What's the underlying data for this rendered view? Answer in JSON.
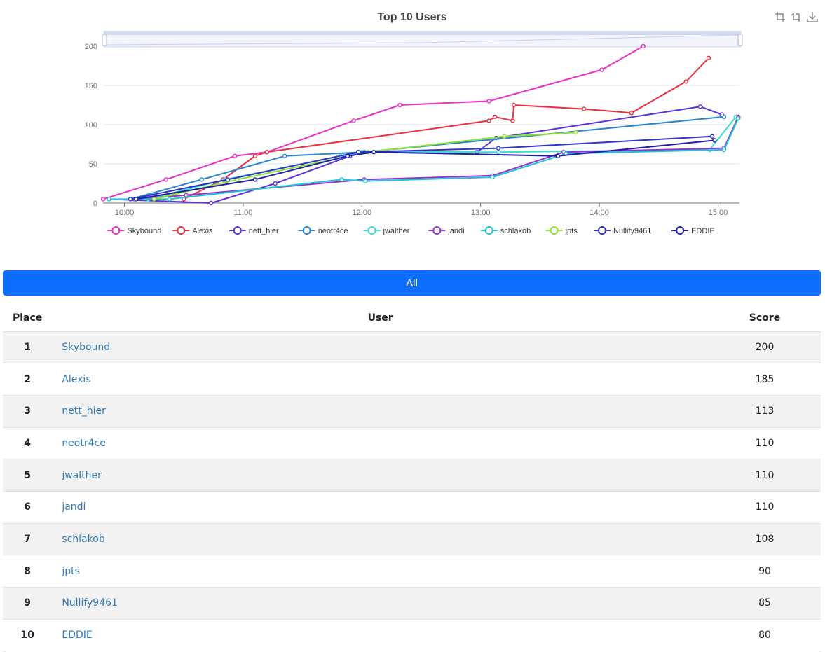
{
  "chart_data": {
    "type": "line",
    "title": "Top 10 Users",
    "xlabel": "",
    "ylabel": "",
    "x_unit": "time of day (hours)",
    "xlim": [
      9.82,
      15.18
    ],
    "ylim": [
      0,
      200
    ],
    "x_ticks": [
      {
        "v": 10,
        "label": "10:00"
      },
      {
        "v": 11,
        "label": "11:00"
      },
      {
        "v": 12,
        "label": "12:00"
      },
      {
        "v": 13,
        "label": "13:00"
      },
      {
        "v": 14,
        "label": "14:00"
      },
      {
        "v": 15,
        "label": "15:00"
      }
    ],
    "y_ticks": [
      0,
      50,
      100,
      150,
      200
    ],
    "grid": true,
    "legend": "bottom",
    "data_zoom": "top slider",
    "series": [
      {
        "name": "Skybound",
        "color": "#ed2fc4",
        "points": [
          [
            9.82,
            5
          ],
          [
            10.35,
            30
          ],
          [
            10.93,
            60
          ],
          [
            11.2,
            65
          ],
          [
            11.93,
            105
          ],
          [
            12.32,
            125
          ],
          [
            13.07,
            130
          ],
          [
            14.02,
            170
          ],
          [
            14.37,
            200
          ]
        ]
      },
      {
        "name": "Alexis",
        "color": "#ed2e3f",
        "points": [
          [
            10.5,
            5
          ],
          [
            10.83,
            30
          ],
          [
            11.1,
            60
          ],
          [
            11.2,
            65
          ],
          [
            13.07,
            105
          ],
          [
            13.12,
            110
          ],
          [
            13.27,
            105
          ],
          [
            13.28,
            125
          ],
          [
            13.87,
            120
          ],
          [
            14.27,
            115
          ],
          [
            14.73,
            155
          ],
          [
            14.92,
            185
          ]
        ]
      },
      {
        "name": "nett_hier",
        "color": "#5c32de",
        "points": [
          [
            9.87,
            5
          ],
          [
            10.73,
            0
          ],
          [
            11.27,
            25
          ],
          [
            11.9,
            60
          ],
          [
            11.97,
            65
          ],
          [
            12.97,
            65
          ],
          [
            13.13,
            83
          ],
          [
            14.85,
            123
          ],
          [
            15.03,
            113
          ]
        ]
      },
      {
        "name": "neotr4ce",
        "color": "#2a85d0",
        "points": [
          [
            10.05,
            5
          ],
          [
            10.65,
            30
          ],
          [
            11.35,
            60
          ],
          [
            12.02,
            65
          ],
          [
            15.05,
            110
          ]
        ]
      },
      {
        "name": "jwalther",
        "color": "#35e0cc",
        "points": [
          [
            10.2,
            5
          ],
          [
            10.85,
            30
          ],
          [
            11.82,
            60
          ],
          [
            12.0,
            65
          ],
          [
            13.15,
            65
          ],
          [
            14.93,
            68
          ],
          [
            15.15,
            110
          ]
        ]
      },
      {
        "name": "jandi",
        "color": "#9630d4",
        "points": [
          [
            10.08,
            5
          ],
          [
            10.52,
            10
          ],
          [
            12.02,
            30
          ],
          [
            13.1,
            35
          ],
          [
            13.7,
            65
          ],
          [
            15.05,
            70
          ],
          [
            15.17,
            110
          ]
        ]
      },
      {
        "name": "schlakob",
        "color": "#1ec4cf",
        "points": [
          [
            9.87,
            5
          ],
          [
            10.38,
            5
          ],
          [
            11.83,
            30
          ],
          [
            12.03,
            28
          ],
          [
            13.1,
            33
          ],
          [
            13.72,
            63
          ],
          [
            15.05,
            68
          ],
          [
            15.17,
            108
          ]
        ]
      },
      {
        "name": "jpts",
        "color": "#8be32e",
        "points": [
          [
            10.25,
            5
          ],
          [
            10.95,
            30
          ],
          [
            12.05,
            65
          ],
          [
            13.2,
            85
          ],
          [
            13.8,
            90
          ]
        ]
      },
      {
        "name": "Nullify9461",
        "color": "#3232c8",
        "points": [
          [
            10.05,
            5
          ],
          [
            10.87,
            30
          ],
          [
            11.97,
            65
          ],
          [
            13.15,
            70
          ],
          [
            14.95,
            85
          ]
        ]
      },
      {
        "name": "EDDIE",
        "color": "#1e1ea8",
        "points": [
          [
            10.1,
            5
          ],
          [
            11.1,
            30
          ],
          [
            11.88,
            60
          ],
          [
            12.1,
            65
          ],
          [
            13.65,
            60
          ],
          [
            14.97,
            80
          ]
        ]
      }
    ]
  },
  "toolbox": {
    "zoom_icon": "zoom-icon",
    "zoom_reset_icon": "zoom-reset-icon",
    "save_icon": "download-icon"
  },
  "filter": {
    "label": "All",
    "color": "#0d6efd"
  },
  "table": {
    "headers": {
      "place": "Place",
      "user": "User",
      "score": "Score"
    },
    "rows": [
      {
        "place": "1",
        "user": "Skybound",
        "score": "200"
      },
      {
        "place": "2",
        "user": "Alexis",
        "score": "185"
      },
      {
        "place": "3",
        "user": "nett_hier",
        "score": "113"
      },
      {
        "place": "4",
        "user": "neotr4ce",
        "score": "110"
      },
      {
        "place": "5",
        "user": "jwalther",
        "score": "110"
      },
      {
        "place": "6",
        "user": "jandi",
        "score": "110"
      },
      {
        "place": "7",
        "user": "schlakob",
        "score": "108"
      },
      {
        "place": "8",
        "user": "jpts",
        "score": "90"
      },
      {
        "place": "9",
        "user": "Nullify9461",
        "score": "85"
      },
      {
        "place": "10",
        "user": "EDDIE",
        "score": "80"
      }
    ]
  }
}
